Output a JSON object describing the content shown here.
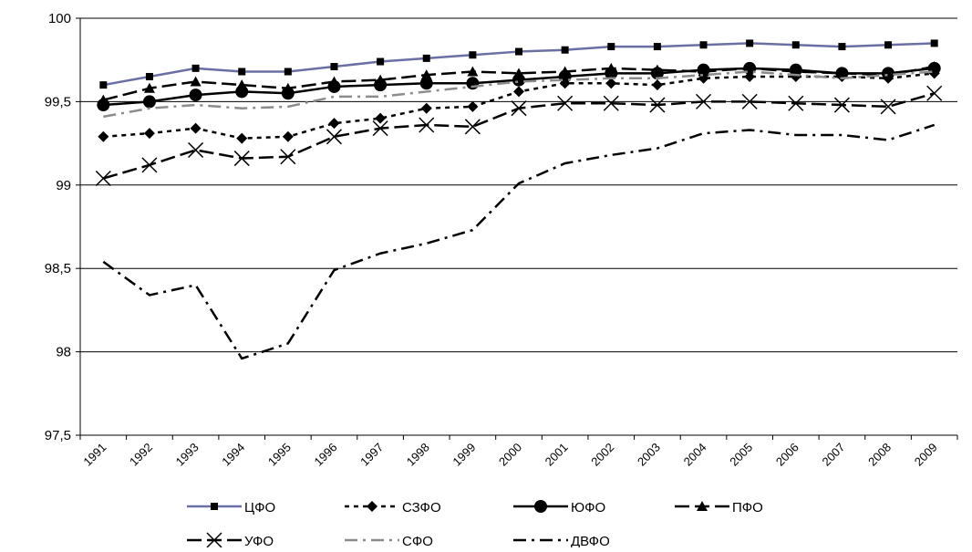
{
  "chart_data": {
    "type": "line",
    "categories": [
      "1991",
      "1992",
      "1993",
      "1994",
      "1995",
      "1996",
      "1997",
      "1998",
      "1999",
      "2000",
      "2001",
      "2002",
      "2003",
      "2004",
      "2005",
      "2006",
      "2007",
      "2008",
      "2009"
    ],
    "ylim": [
      97.5,
      100
    ],
    "y_ticks": [
      "97,5",
      "98",
      "98,5",
      "99",
      "99,5",
      "100"
    ],
    "grid": "horizontal",
    "legend_position": "bottom",
    "series": [
      {
        "name": "ЦФО",
        "color": "#6b6fa3",
        "style": "solid",
        "marker": "square",
        "values": [
          99.6,
          99.65,
          99.7,
          99.68,
          99.68,
          99.71,
          99.74,
          99.76,
          99.78,
          99.8,
          99.81,
          99.83,
          99.83,
          99.84,
          99.85,
          99.84,
          99.83,
          99.84,
          99.85
        ]
      },
      {
        "name": "СЗФО",
        "color": "#000000",
        "style": "dotted",
        "marker": "diamond",
        "values": [
          99.29,
          99.31,
          99.34,
          99.28,
          99.29,
          99.37,
          99.4,
          99.46,
          99.47,
          99.56,
          99.61,
          99.61,
          99.6,
          99.64,
          99.65,
          99.65,
          99.65,
          99.64,
          99.67
        ]
      },
      {
        "name": "ЮФО",
        "color": "#000000",
        "style": "solid",
        "marker": "circle",
        "values": [
          99.48,
          99.5,
          99.54,
          99.56,
          99.55,
          99.59,
          99.6,
          99.61,
          99.61,
          99.63,
          99.65,
          99.67,
          99.67,
          99.69,
          99.7,
          99.69,
          99.67,
          99.67,
          99.7
        ]
      },
      {
        "name": "ПФО",
        "color": "#000000",
        "style": "longdash",
        "marker": "triangle",
        "values": [
          99.51,
          99.58,
          99.62,
          99.6,
          99.58,
          99.62,
          99.63,
          99.66,
          99.68,
          99.67,
          99.68,
          99.7,
          99.69,
          99.68,
          99.7,
          99.68,
          99.67,
          99.66,
          99.71
        ]
      },
      {
        "name": "УФО",
        "color": "#000000",
        "style": "longdash",
        "marker": "x",
        "values": [
          99.04,
          99.12,
          99.21,
          99.16,
          99.17,
          99.29,
          99.34,
          99.36,
          99.35,
          99.46,
          99.49,
          99.49,
          99.48,
          99.5,
          99.5,
          99.49,
          99.48,
          99.47,
          99.55
        ]
      },
      {
        "name": "СФО",
        "color": "#8c8c8c",
        "style": "dashdot",
        "marker": "none",
        "values": [
          99.41,
          99.46,
          99.48,
          99.46,
          99.47,
          99.53,
          99.53,
          99.56,
          99.59,
          99.62,
          99.63,
          99.64,
          99.64,
          99.66,
          99.68,
          99.66,
          99.64,
          99.66,
          99.68
        ]
      },
      {
        "name": "ДВФО",
        "color": "#000000",
        "style": "dashdot",
        "marker": "none",
        "values": [
          98.54,
          98.34,
          98.4,
          97.96,
          98.05,
          98.49,
          98.59,
          98.65,
          98.73,
          99.01,
          99.13,
          99.18,
          99.22,
          99.31,
          99.33,
          99.3,
          99.3,
          99.27,
          99.36
        ]
      }
    ]
  }
}
